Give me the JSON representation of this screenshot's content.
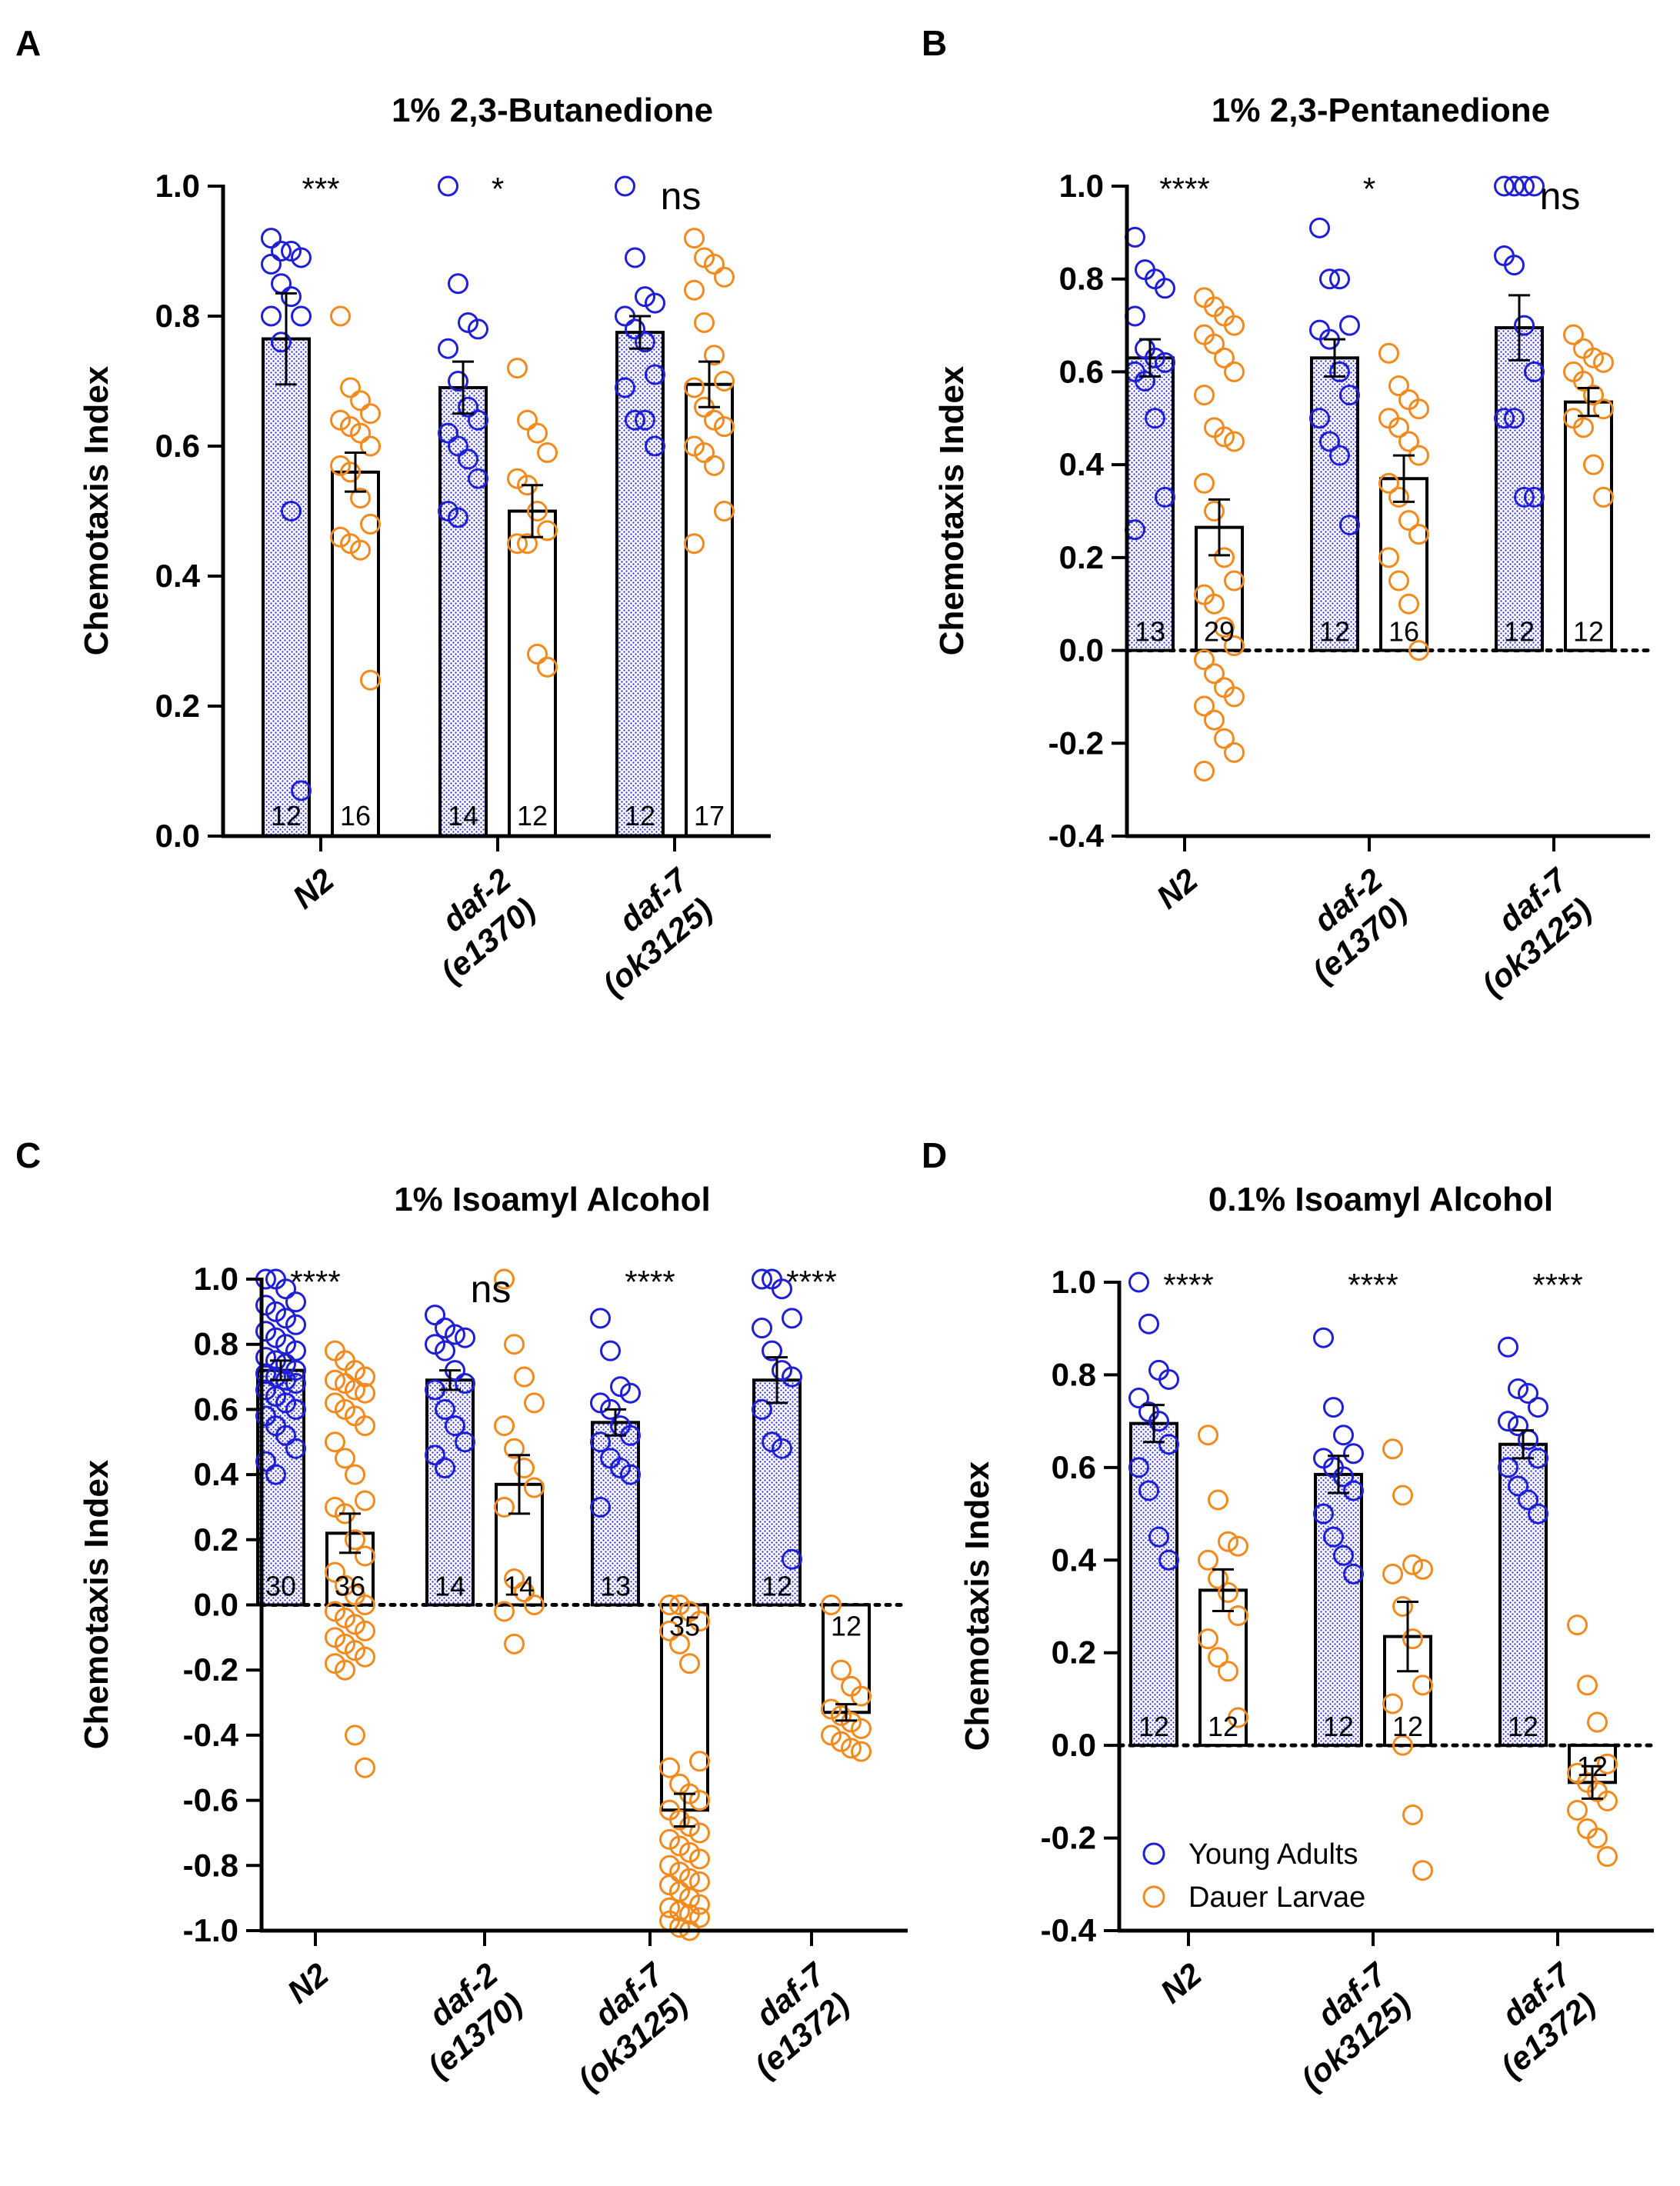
{
  "colors": {
    "adult": "#1f1fd6",
    "dauer": "#f28a1e",
    "axis": "#000000"
  },
  "legend": [
    "Young Adults",
    "Dauer Larvae"
  ],
  "ylabel": "Chemotaxis Index",
  "chart_data": [
    {
      "panel": "A",
      "type": "bar",
      "title": "1% 2,3-Butanedione",
      "ylabel": "Chemotaxis Index",
      "ylim": [
        0,
        1
      ],
      "yticks": [
        "0.0",
        "0.2",
        "0.4",
        "0.6",
        "0.8",
        "1.0"
      ],
      "zero_line": false,
      "groups": [
        {
          "label": [
            "N2"
          ],
          "significance": "***",
          "adult": {
            "mean": 0.765,
            "sem": 0.07,
            "n": "12",
            "points": [
              0.92,
              0.9,
              0.9,
              0.89,
              0.88,
              0.85,
              0.83,
              0.8,
              0.8,
              0.76,
              0.5,
              0.07
            ]
          },
          "dauer": {
            "mean": 0.56,
            "sem": 0.03,
            "n": "16",
            "points": [
              0.8,
              0.69,
              0.67,
              0.65,
              0.64,
              0.63,
              0.62,
              0.6,
              0.57,
              0.56,
              0.52,
              0.48,
              0.46,
              0.45,
              0.44,
              0.24
            ]
          }
        },
        {
          "label": [
            "daf-2",
            "(e1370)"
          ],
          "significance": "*",
          "adult": {
            "mean": 0.69,
            "sem": 0.04,
            "n": "14",
            "points": [
              1.0,
              0.85,
              0.79,
              0.78,
              0.75,
              0.7,
              0.66,
              0.64,
              0.62,
              0.6,
              0.58,
              0.55,
              0.5,
              0.49
            ]
          },
          "dauer": {
            "mean": 0.5,
            "sem": 0.04,
            "n": "12",
            "points": [
              0.72,
              0.64,
              0.62,
              0.59,
              0.55,
              0.54,
              0.5,
              0.47,
              0.45,
              0.45,
              0.28,
              0.26
            ]
          }
        },
        {
          "label": [
            "daf-7",
            "(ok3125)"
          ],
          "significance": "ns",
          "adult": {
            "mean": 0.775,
            "sem": 0.025,
            "n": "12",
            "points": [
              1.0,
              0.89,
              0.83,
              0.82,
              0.8,
              0.78,
              0.76,
              0.71,
              0.69,
              0.64,
              0.64,
              0.6
            ]
          },
          "dauer": {
            "mean": 0.695,
            "sem": 0.035,
            "n": "17",
            "points": [
              0.92,
              0.89,
              0.88,
              0.86,
              0.84,
              0.79,
              0.74,
              0.7,
              0.69,
              0.66,
              0.64,
              0.63,
              0.6,
              0.59,
              0.57,
              0.5,
              0.45
            ]
          }
        }
      ]
    },
    {
      "panel": "B",
      "type": "bar",
      "title": "1% 2,3-Pentanedione",
      "ylabel": "Chemotaxis Index",
      "ylim": [
        -0.4,
        1
      ],
      "yticks": [
        "-0.4",
        "-0.2",
        "0.0",
        "0.2",
        "0.4",
        "0.6",
        "0.8",
        "1.0"
      ],
      "zero_line": true,
      "groups": [
        {
          "label": [
            "N2"
          ],
          "significance": "****",
          "adult": {
            "mean": 0.63,
            "sem": 0.04,
            "n": "13",
            "points": [
              0.89,
              0.82,
              0.8,
              0.78,
              0.72,
              0.65,
              0.63,
              0.62,
              0.6,
              0.58,
              0.5,
              0.33,
              0.26
            ]
          },
          "dauer": {
            "mean": 0.265,
            "sem": 0.06,
            "n": "29",
            "points": [
              0.76,
              0.74,
              0.72,
              0.7,
              0.68,
              0.66,
              0.63,
              0.6,
              0.55,
              0.48,
              0.46,
              0.45,
              0.36,
              0.3,
              0.2,
              0.15,
              0.12,
              0.1,
              0.05,
              0.01,
              -0.02,
              -0.05,
              -0.08,
              -0.1,
              -0.12,
              -0.15,
              -0.19,
              -0.22,
              -0.26
            ]
          }
        },
        {
          "label": [
            "daf-2",
            "(e1370)"
          ],
          "significance": "*",
          "adult": {
            "mean": 0.63,
            "sem": 0.04,
            "n": "12",
            "points": [
              0.91,
              0.8,
              0.8,
              0.7,
              0.69,
              0.67,
              0.6,
              0.55,
              0.5,
              0.45,
              0.42,
              0.27
            ]
          },
          "dauer": {
            "mean": 0.37,
            "sem": 0.05,
            "n": "16",
            "points": [
              0.64,
              0.57,
              0.54,
              0.52,
              0.5,
              0.48,
              0.45,
              0.42,
              0.36,
              0.33,
              0.28,
              0.25,
              0.2,
              0.15,
              0.1,
              0.0
            ]
          }
        },
        {
          "label": [
            "daf-7",
            "(ok3125)"
          ],
          "significance": "ns",
          "adult": {
            "mean": 0.695,
            "sem": 0.07,
            "n": "12",
            "points": [
              1.0,
              1.0,
              1.0,
              1.0,
              0.85,
              0.83,
              0.7,
              0.6,
              0.5,
              0.5,
              0.33,
              0.33
            ]
          },
          "dauer": {
            "mean": 0.535,
            "sem": 0.03,
            "n": "12",
            "points": [
              0.68,
              0.65,
              0.63,
              0.62,
              0.6,
              0.58,
              0.55,
              0.52,
              0.5,
              0.48,
              0.4,
              0.33
            ]
          }
        }
      ]
    },
    {
      "panel": "C",
      "type": "bar",
      "title": "1% Isoamyl Alcohol",
      "ylabel": "Chemotaxis Index",
      "ylim": [
        -1,
        1
      ],
      "yticks": [
        "-1.0",
        "-0.8",
        "-0.6",
        "-0.4",
        "-0.2",
        "0.0",
        "0.2",
        "0.4",
        "0.6",
        "0.8",
        "1.0"
      ],
      "zero_line": true,
      "groups": [
        {
          "label": [
            "N2"
          ],
          "significance": "****",
          "adult": {
            "mean": 0.72,
            "sem": 0.03,
            "n": "30",
            "points": [
              1.0,
              1.0,
              0.97,
              0.93,
              0.92,
              0.9,
              0.88,
              0.86,
              0.84,
              0.82,
              0.8,
              0.78,
              0.76,
              0.75,
              0.74,
              0.72,
              0.71,
              0.7,
              0.69,
              0.68,
              0.66,
              0.64,
              0.62,
              0.6,
              0.58,
              0.55,
              0.52,
              0.48,
              0.44,
              0.4
            ]
          },
          "dauer": {
            "mean": 0.22,
            "sem": 0.06,
            "n": "36",
            "points": [
              0.78,
              0.75,
              0.72,
              0.7,
              0.69,
              0.68,
              0.66,
              0.65,
              0.62,
              0.6,
              0.58,
              0.55,
              0.5,
              0.45,
              0.4,
              0.32,
              0.3,
              0.28,
              0.2,
              0.15,
              0.1,
              0.06,
              0.03,
              0.0,
              -0.02,
              -0.04,
              -0.06,
              -0.08,
              -0.1,
              -0.12,
              -0.14,
              -0.16,
              -0.18,
              -0.2,
              -0.4,
              -0.5
            ]
          }
        },
        {
          "label": [
            "daf-2",
            "(e1370)"
          ],
          "significance": "ns",
          "adult": {
            "mean": 0.69,
            "sem": 0.03,
            "n": "14",
            "points": [
              0.89,
              0.85,
              0.83,
              0.82,
              0.8,
              0.78,
              0.72,
              0.68,
              0.66,
              0.6,
              0.55,
              0.5,
              0.46,
              0.42
            ]
          },
          "dauer": {
            "mean": 0.37,
            "sem": 0.09,
            "n": "14",
            "points": [
              1.0,
              0.8,
              0.7,
              0.62,
              0.55,
              0.48,
              0.42,
              0.36,
              0.3,
              0.08,
              0.04,
              0.0,
              -0.02,
              -0.12
            ]
          }
        },
        {
          "label": [
            "daf-7",
            "(ok3125)"
          ],
          "significance": "****",
          "adult": {
            "mean": 0.56,
            "sem": 0.04,
            "n": "13",
            "points": [
              0.88,
              0.78,
              0.67,
              0.65,
              0.62,
              0.6,
              0.55,
              0.52,
              0.5,
              0.45,
              0.42,
              0.4,
              0.3
            ]
          },
          "dauer": {
            "mean": -0.63,
            "sem": 0.05,
            "n": "35",
            "points": [
              0.0,
              0.0,
              -0.02,
              -0.05,
              -0.08,
              -0.12,
              -0.18,
              -0.48,
              -0.5,
              -0.55,
              -0.58,
              -0.6,
              -0.63,
              -0.66,
              -0.68,
              -0.7,
              -0.72,
              -0.74,
              -0.76,
              -0.78,
              -0.8,
              -0.82,
              -0.84,
              -0.85,
              -0.86,
              -0.88,
              -0.9,
              -0.92,
              -0.93,
              -0.94,
              -0.95,
              -0.96,
              -0.97,
              -0.99,
              -1.0
            ]
          }
        },
        {
          "label": [
            "daf-7",
            "(e1372)"
          ],
          "significance": "****",
          "adult": {
            "mean": 0.69,
            "sem": 0.07,
            "n": "12",
            "points": [
              1.0,
              1.0,
              0.97,
              0.88,
              0.85,
              0.78,
              0.72,
              0.7,
              0.6,
              0.5,
              0.48,
              0.14
            ]
          },
          "dauer": {
            "mean": -0.33,
            "sem": 0.025,
            "n": "12",
            "points": [
              0.0,
              -0.2,
              -0.25,
              -0.28,
              -0.32,
              -0.34,
              -0.36,
              -0.38,
              -0.4,
              -0.42,
              -0.44,
              -0.45
            ]
          }
        }
      ]
    },
    {
      "panel": "D",
      "type": "bar",
      "title": "0.1% Isoamyl Alcohol",
      "ylabel": "Chemotaxis Index",
      "ylim": [
        -0.4,
        1
      ],
      "yticks": [
        "-0.4",
        "-0.2",
        "0.0",
        "0.2",
        "0.4",
        "0.6",
        "0.8",
        "1.0"
      ],
      "zero_line": true,
      "legend": [
        "Young Adults",
        "Dauer Larvae"
      ],
      "groups": [
        {
          "label": [
            "N2"
          ],
          "significance": "****",
          "adult": {
            "mean": 0.695,
            "sem": 0.04,
            "n": "12",
            "points": [
              1.0,
              0.91,
              0.81,
              0.79,
              0.75,
              0.72,
              0.7,
              0.65,
              0.6,
              0.55,
              0.45,
              0.4
            ]
          },
          "dauer": {
            "mean": 0.335,
            "sem": 0.045,
            "n": "12",
            "points": [
              0.67,
              0.53,
              0.44,
              0.43,
              0.4,
              0.36,
              0.33,
              0.28,
              0.23,
              0.19,
              0.16,
              0.06
            ]
          }
        },
        {
          "label": [
            "daf-7",
            "(ok3125)"
          ],
          "significance": "****",
          "adult": {
            "mean": 0.585,
            "sem": 0.04,
            "n": "12",
            "points": [
              0.88,
              0.73,
              0.67,
              0.63,
              0.62,
              0.6,
              0.58,
              0.55,
              0.5,
              0.45,
              0.41,
              0.37
            ]
          },
          "dauer": {
            "mean": 0.235,
            "sem": 0.075,
            "n": "12",
            "points": [
              0.64,
              0.54,
              0.39,
              0.38,
              0.37,
              0.3,
              0.23,
              0.13,
              0.09,
              0.0,
              -0.15,
              -0.27
            ]
          }
        },
        {
          "label": [
            "daf-7",
            "(e1372)"
          ],
          "significance": "****",
          "adult": {
            "mean": 0.65,
            "sem": 0.03,
            "n": "12",
            "points": [
              0.86,
              0.77,
              0.76,
              0.73,
              0.7,
              0.69,
              0.66,
              0.62,
              0.6,
              0.56,
              0.53,
              0.5
            ]
          },
          "dauer": {
            "mean": -0.08,
            "sem": 0.035,
            "n": "12",
            "points": [
              0.26,
              0.13,
              0.05,
              -0.04,
              -0.06,
              -0.08,
              -0.1,
              -0.12,
              -0.14,
              -0.18,
              -0.2,
              -0.24
            ]
          }
        }
      ]
    }
  ]
}
